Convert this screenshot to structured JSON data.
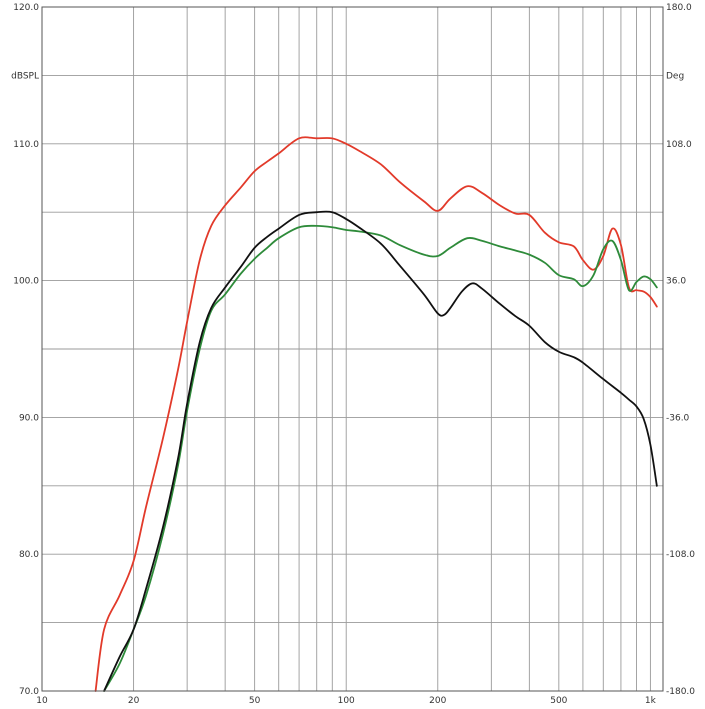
{
  "chart_data": {
    "type": "line",
    "x_scale": "log",
    "xlim": [
      10,
      1100
    ],
    "ylim": [
      70,
      120
    ],
    "y2lim": [
      -180,
      180
    ],
    "grid": true,
    "legend": "none",
    "ylabel": "dBSPL",
    "y2label": "Deg",
    "x_ticks": [
      {
        "value": 10,
        "label": "10"
      },
      {
        "value": 20,
        "label": "20"
      },
      {
        "value": 50,
        "label": "50"
      },
      {
        "value": 100,
        "label": "100"
      },
      {
        "value": 200,
        "label": "200"
      },
      {
        "value": 500,
        "label": "500"
      },
      {
        "value": 1000,
        "label": "1k"
      }
    ],
    "x_gridlines": [
      20,
      30,
      40,
      50,
      60,
      70,
      80,
      90,
      100,
      200,
      300,
      400,
      500,
      600,
      700,
      800,
      900,
      1000
    ],
    "y_ticks": [
      {
        "value": 70,
        "label": "70.0"
      },
      {
        "value": 80,
        "label": "80.0"
      },
      {
        "value": 90,
        "label": "90.0"
      },
      {
        "value": 100,
        "label": "100.0"
      },
      {
        "value": 110,
        "label": "110.0"
      },
      {
        "value": 120,
        "label": "120.0"
      }
    ],
    "y_gridlines": [
      70,
      75,
      80,
      85,
      90,
      95,
      100,
      105,
      110,
      115,
      120
    ],
    "y2_ticks": [
      {
        "value": -180,
        "label": "-180.0"
      },
      {
        "value": -108,
        "label": "-108.0"
      },
      {
        "value": -36,
        "label": "-36.0"
      },
      {
        "value": 36,
        "label": "36.0"
      },
      {
        "value": 108,
        "label": "108.0"
      },
      {
        "value": 180,
        "label": "180.0"
      }
    ],
    "series": [
      {
        "color": "#e23a2a",
        "x": [
          15,
          16,
          18,
          20,
          22,
          25,
          28,
          30,
          33,
          36,
          40,
          45,
          50,
          55,
          60,
          70,
          80,
          90,
          100,
          110,
          130,
          150,
          180,
          200,
          220,
          250,
          280,
          320,
          360,
          400,
          450,
          500,
          560,
          600,
          650,
          700,
          750,
          800,
          850,
          900,
          950,
          1000,
          1050
        ],
        "y": [
          70.0,
          74.5,
          77.0,
          79.5,
          83.5,
          88.5,
          93.5,
          97.0,
          101.5,
          104.0,
          105.5,
          106.8,
          108.0,
          108.7,
          109.3,
          110.4,
          110.4,
          110.4,
          110.0,
          109.5,
          108.5,
          107.2,
          105.8,
          105.1,
          106.0,
          106.9,
          106.4,
          105.5,
          104.9,
          104.8,
          103.5,
          102.8,
          102.5,
          101.5,
          100.8,
          101.8,
          103.8,
          102.6,
          99.5,
          99.3,
          99.2,
          98.8,
          98.1
        ]
      },
      {
        "color": "#2e8b3a",
        "x": [
          16,
          18,
          20,
          22,
          25,
          28,
          30,
          33,
          36,
          40,
          45,
          50,
          55,
          60,
          70,
          80,
          90,
          100,
          110,
          130,
          150,
          180,
          200,
          220,
          250,
          280,
          320,
          360,
          400,
          450,
          500,
          560,
          600,
          650,
          700,
          750,
          800,
          850,
          900,
          950,
          1000,
          1050
        ],
        "y": [
          70.0,
          72.0,
          74.5,
          77.0,
          81.5,
          86.5,
          90.5,
          95.0,
          97.8,
          99.0,
          100.5,
          101.6,
          102.4,
          103.1,
          103.9,
          104.0,
          103.9,
          103.7,
          103.6,
          103.3,
          102.6,
          101.9,
          101.8,
          102.4,
          103.1,
          102.9,
          102.5,
          102.2,
          101.9,
          101.3,
          100.4,
          100.1,
          99.6,
          100.4,
          102.3,
          102.9,
          101.5,
          99.3,
          99.9,
          100.3,
          100.1,
          99.5
        ]
      },
      {
        "color": "#111111",
        "x": [
          16,
          18,
          20,
          22,
          25,
          28,
          30,
          33,
          36,
          40,
          45,
          50,
          55,
          60,
          70,
          80,
          90,
          100,
          110,
          130,
          150,
          180,
          200,
          210,
          220,
          240,
          260,
          280,
          320,
          360,
          400,
          450,
          500,
          560,
          600,
          700,
          800,
          850,
          900,
          950,
          1000,
          1050
        ],
        "y": [
          70.0,
          72.5,
          74.5,
          77.5,
          82.0,
          87.0,
          91.0,
          95.5,
          98.0,
          99.5,
          101.0,
          102.4,
          103.2,
          103.8,
          104.8,
          105.0,
          105.0,
          104.5,
          103.9,
          102.7,
          101.1,
          99.0,
          97.6,
          97.5,
          98.0,
          99.2,
          99.8,
          99.4,
          98.3,
          97.4,
          96.7,
          95.5,
          94.8,
          94.4,
          94.0,
          92.8,
          91.8,
          91.3,
          90.8,
          89.9,
          88.0,
          85.0
        ]
      }
    ]
  }
}
